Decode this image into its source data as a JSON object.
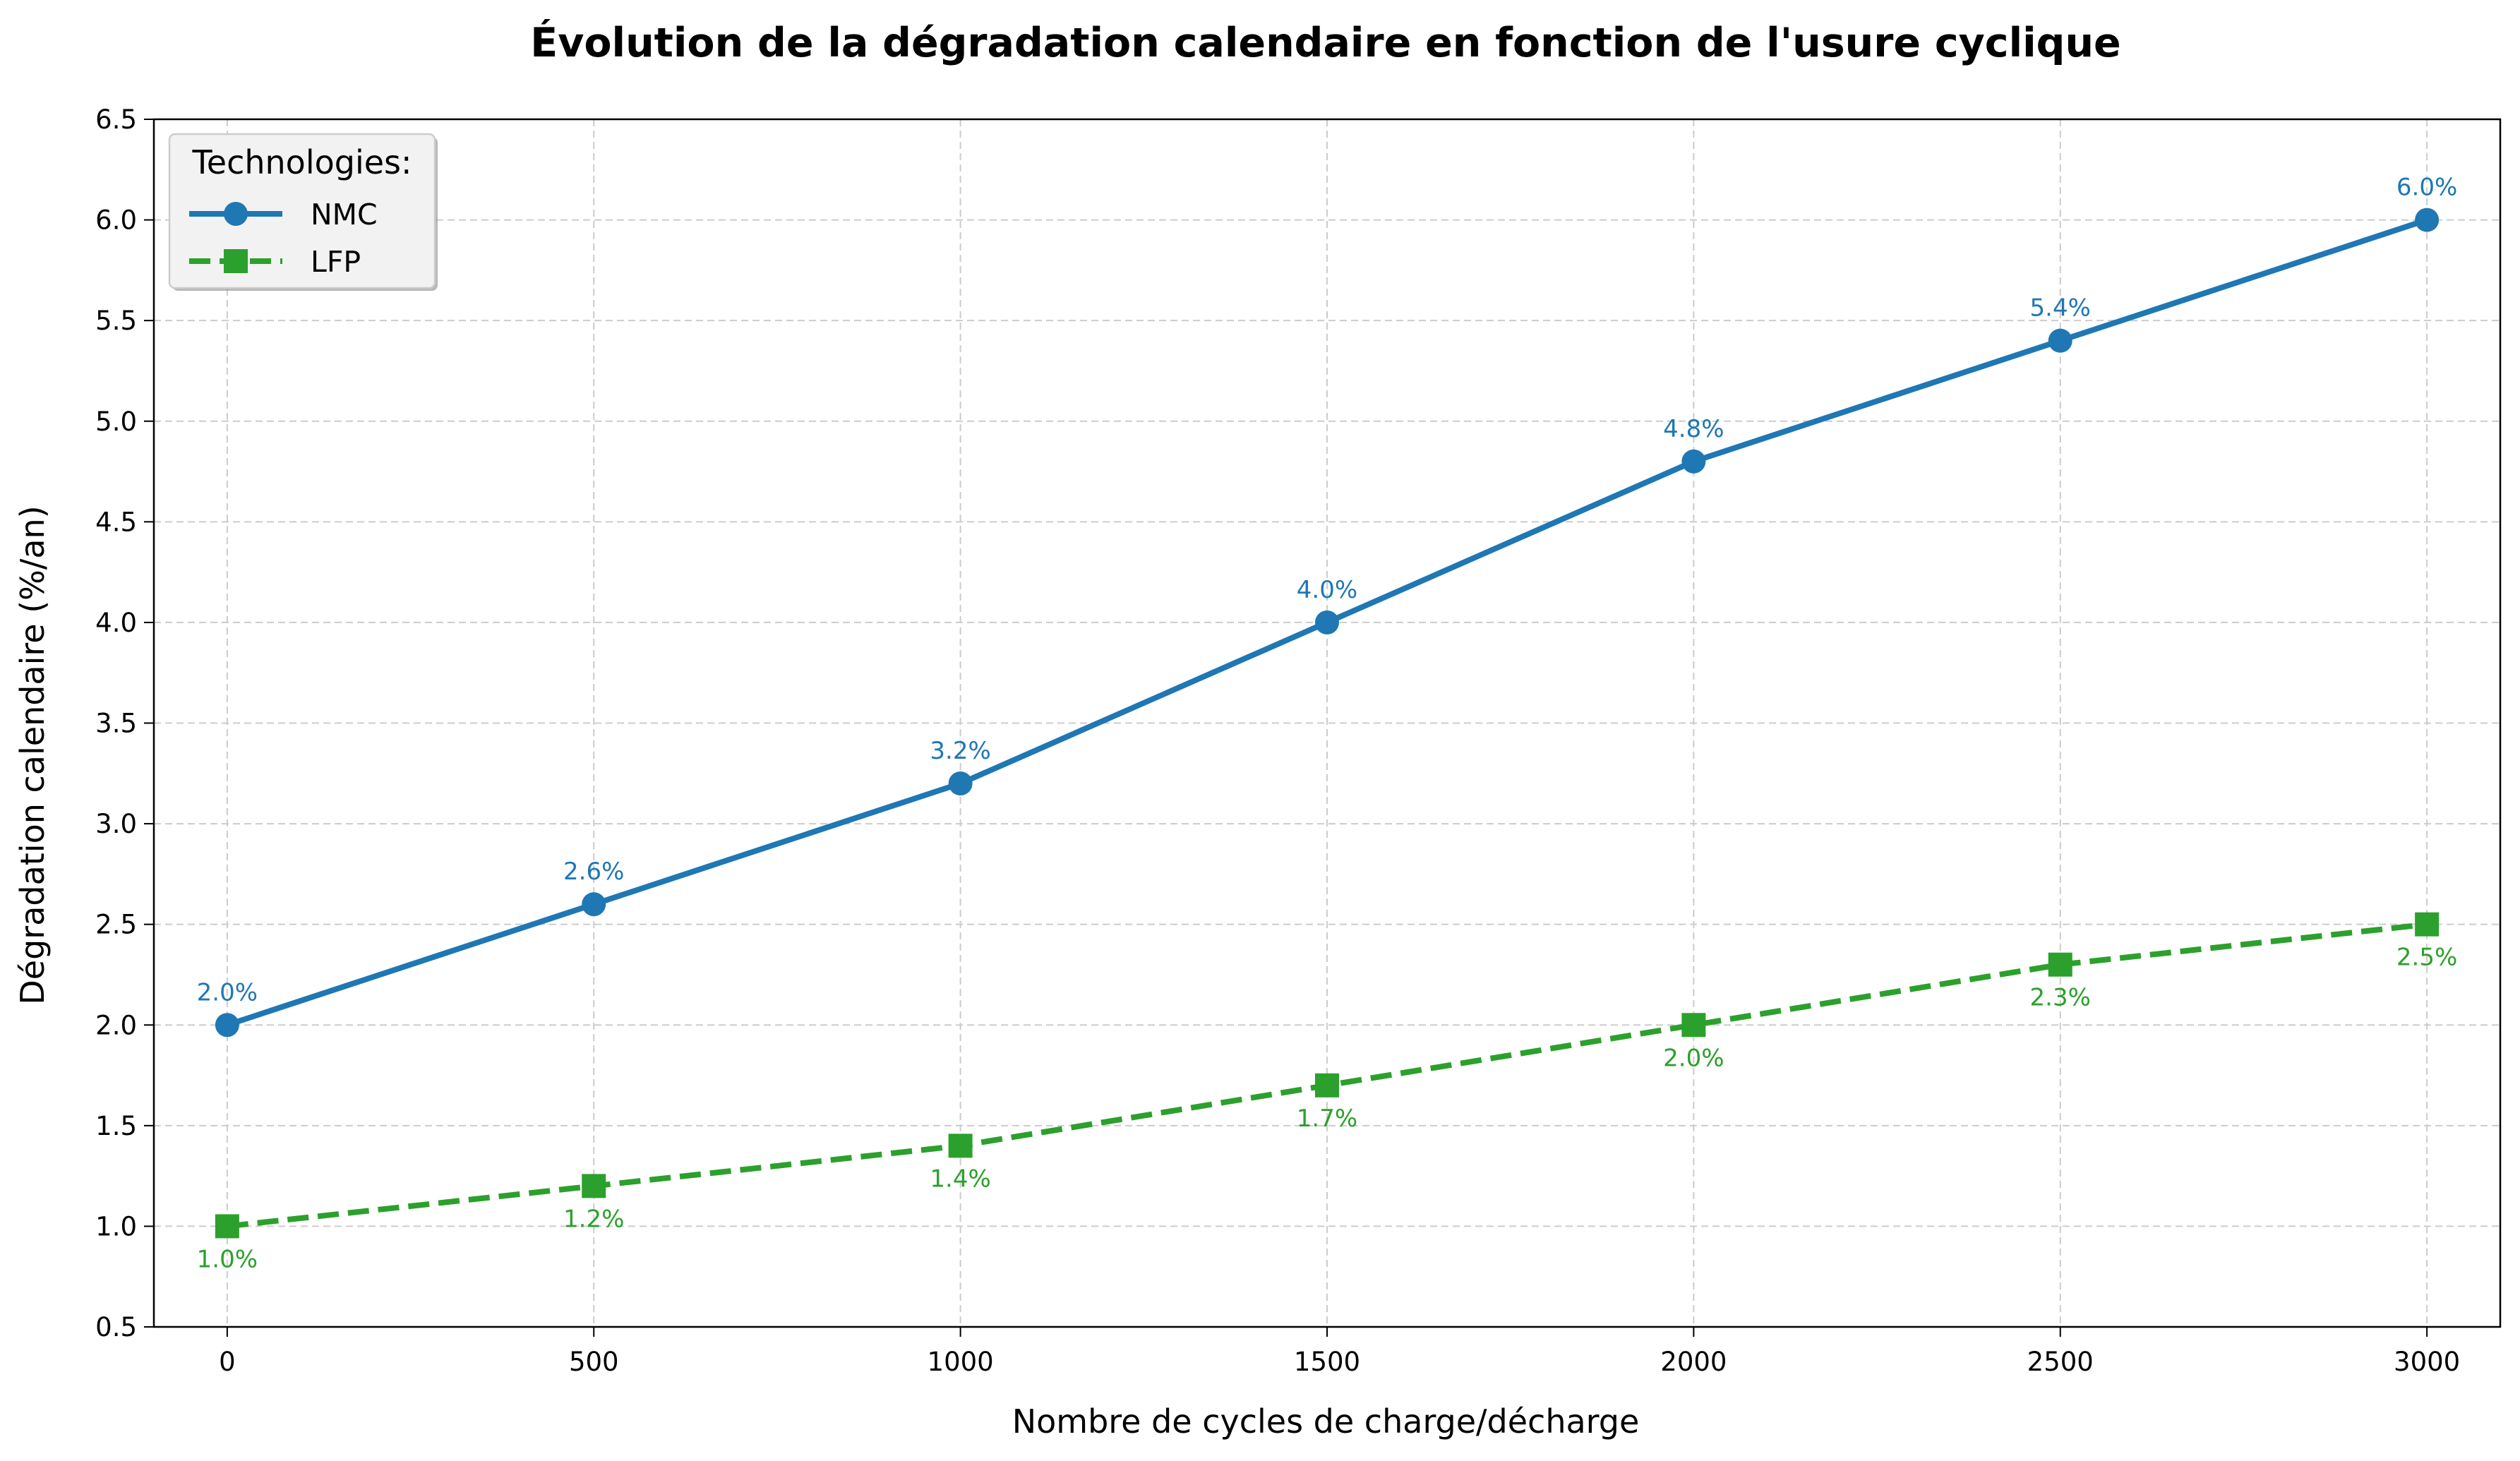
{
  "chart_data": {
    "type": "line",
    "title": "Évolution de la dégradation calendaire en fonction de l'usure cyclique",
    "xlabel": "Nombre de cycles de charge/décharge",
    "ylabel": "Dégradation calendaire (%/an)",
    "x": [
      0,
      500,
      1000,
      1500,
      2000,
      2500,
      3000
    ],
    "xlim": [
      -100,
      3100
    ],
    "ylim": [
      0.5,
      6.5
    ],
    "xticks": [
      "0",
      "500",
      "1000",
      "1500",
      "2000",
      "2500",
      "3000"
    ],
    "yticks": [
      "0.5",
      "1.0",
      "1.5",
      "2.0",
      "2.5",
      "3.0",
      "3.5",
      "4.0",
      "4.5",
      "5.0",
      "5.5",
      "6.0",
      "6.5"
    ],
    "grid": true,
    "legend": {
      "title": "Technologies:",
      "placement": "top-left"
    },
    "series": [
      {
        "name": "NMC",
        "values": [
          2.0,
          2.6,
          3.2,
          4.0,
          4.8,
          5.4,
          6.0
        ],
        "labels": [
          "2.0%",
          "2.6%",
          "3.2%",
          "4.0%",
          "4.8%",
          "5.4%",
          "6.0%"
        ],
        "color": "#1f77b4",
        "marker": "circle",
        "linestyle": "solid",
        "label_position": "above"
      },
      {
        "name": "LFP",
        "values": [
          1.0,
          1.2,
          1.4,
          1.7,
          2.0,
          2.3,
          2.5
        ],
        "labels": [
          "1.0%",
          "1.2%",
          "1.4%",
          "1.7%",
          "2.0%",
          "2.3%",
          "2.5%"
        ],
        "color": "#2ca02c",
        "marker": "square",
        "linestyle": "dashed",
        "label_position": "below"
      }
    ]
  }
}
